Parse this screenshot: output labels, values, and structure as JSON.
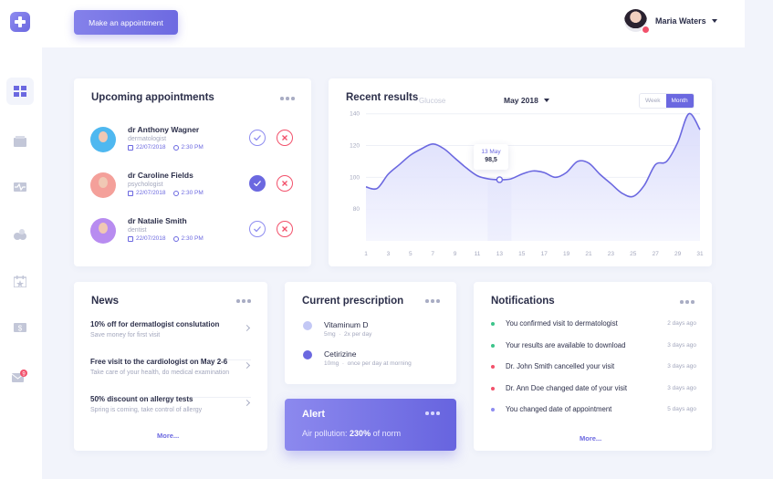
{
  "header": {
    "cta_label": "Make an appointment",
    "user_name": "Maria Waters"
  },
  "appointments": {
    "title": "Upcoming appointments",
    "items": [
      {
        "name": "dr Anthony Wagner",
        "specialty": "dermatologist",
        "date": "22/07/2018",
        "time": "2:30 PM",
        "confirmed": false,
        "avatar_color": "#4fb8f0"
      },
      {
        "name": "dr Caroline Fields",
        "specialty": "psychologist",
        "date": "22/07/2018",
        "time": "2:30 PM",
        "confirmed": true,
        "avatar_color": "#f4a09a"
      },
      {
        "name": "dr Natalie Smith",
        "specialty": "dentist",
        "date": "22/07/2018",
        "time": "2:30 PM",
        "confirmed": false,
        "avatar_color": "#b88cf0"
      }
    ]
  },
  "results": {
    "title": "Recent results",
    "subtitle": "Glucose",
    "month": "May 2018",
    "toggle": [
      "Week",
      "Month"
    ],
    "active_toggle": "Month",
    "tooltip": {
      "date": "13 May",
      "value": "98,5"
    }
  },
  "chart_data": {
    "type": "area",
    "title": "Recent results",
    "subtitle": "Glucose",
    "x": [
      1,
      2,
      3,
      4,
      5,
      6,
      7,
      8,
      9,
      10,
      11,
      12,
      13,
      14,
      15,
      16,
      17,
      18,
      19,
      20,
      21,
      22,
      23,
      24,
      25,
      26,
      27,
      28,
      29,
      30,
      31
    ],
    "values": [
      94,
      93,
      102,
      108,
      114,
      118,
      121,
      118,
      112,
      106,
      101,
      99,
      98.5,
      99,
      102,
      104,
      103,
      100,
      103,
      110,
      109,
      102,
      96,
      90,
      88,
      95,
      108,
      110,
      122,
      140,
      130
    ],
    "xticks": [
      1,
      3,
      5,
      7,
      9,
      11,
      13,
      15,
      17,
      19,
      21,
      23,
      25,
      27,
      29,
      31
    ],
    "yticks": [
      80,
      100,
      120,
      140
    ],
    "ylim": [
      60,
      145
    ],
    "highlight_x": 13,
    "grid": true
  },
  "news": {
    "title": "News",
    "items": [
      {
        "title": "10% off for dermatlogist conslutation",
        "sub": "Save money for first visit"
      },
      {
        "title": "Free visit to the cardiologist on May 2-6",
        "sub": "Take care of your health, do medical examination"
      },
      {
        "title": "50% discount on allergy tests",
        "sub": "Spring is coming, take control of allergy"
      }
    ],
    "more": "More..."
  },
  "prescription": {
    "title": "Current prescription",
    "items": [
      {
        "name": "Vitaminum D",
        "dose": "5mg",
        "freq": "2x per day",
        "color": "#c3c8f5"
      },
      {
        "name": "Cetirizine",
        "dose": "10mg",
        "freq": "once per day at morning",
        "color": "#6b68e0"
      }
    ]
  },
  "alert": {
    "title": "Alert",
    "text_prefix": "Air pollution:",
    "value": "230%",
    "text_suffix": "of norm"
  },
  "notifications": {
    "title": "Notifications",
    "items": [
      {
        "text": "You confirmed visit to dermatologist",
        "time": "2 days ago",
        "color": "#3cc48a"
      },
      {
        "text": "Your results are available to download",
        "time": "3 days ago",
        "color": "#3cc48a"
      },
      {
        "text": "Dr. John Smith cancelled your visit",
        "time": "3 days ago",
        "color": "#f2516b"
      },
      {
        "text": "Dr. Ann Doe changed date of your visit",
        "time": "3 days ago",
        "color": "#f2516b"
      },
      {
        "text": "You changed date of appointment",
        "time": "5 days ago",
        "color": "#8e8cf0"
      }
    ],
    "more": "More..."
  }
}
